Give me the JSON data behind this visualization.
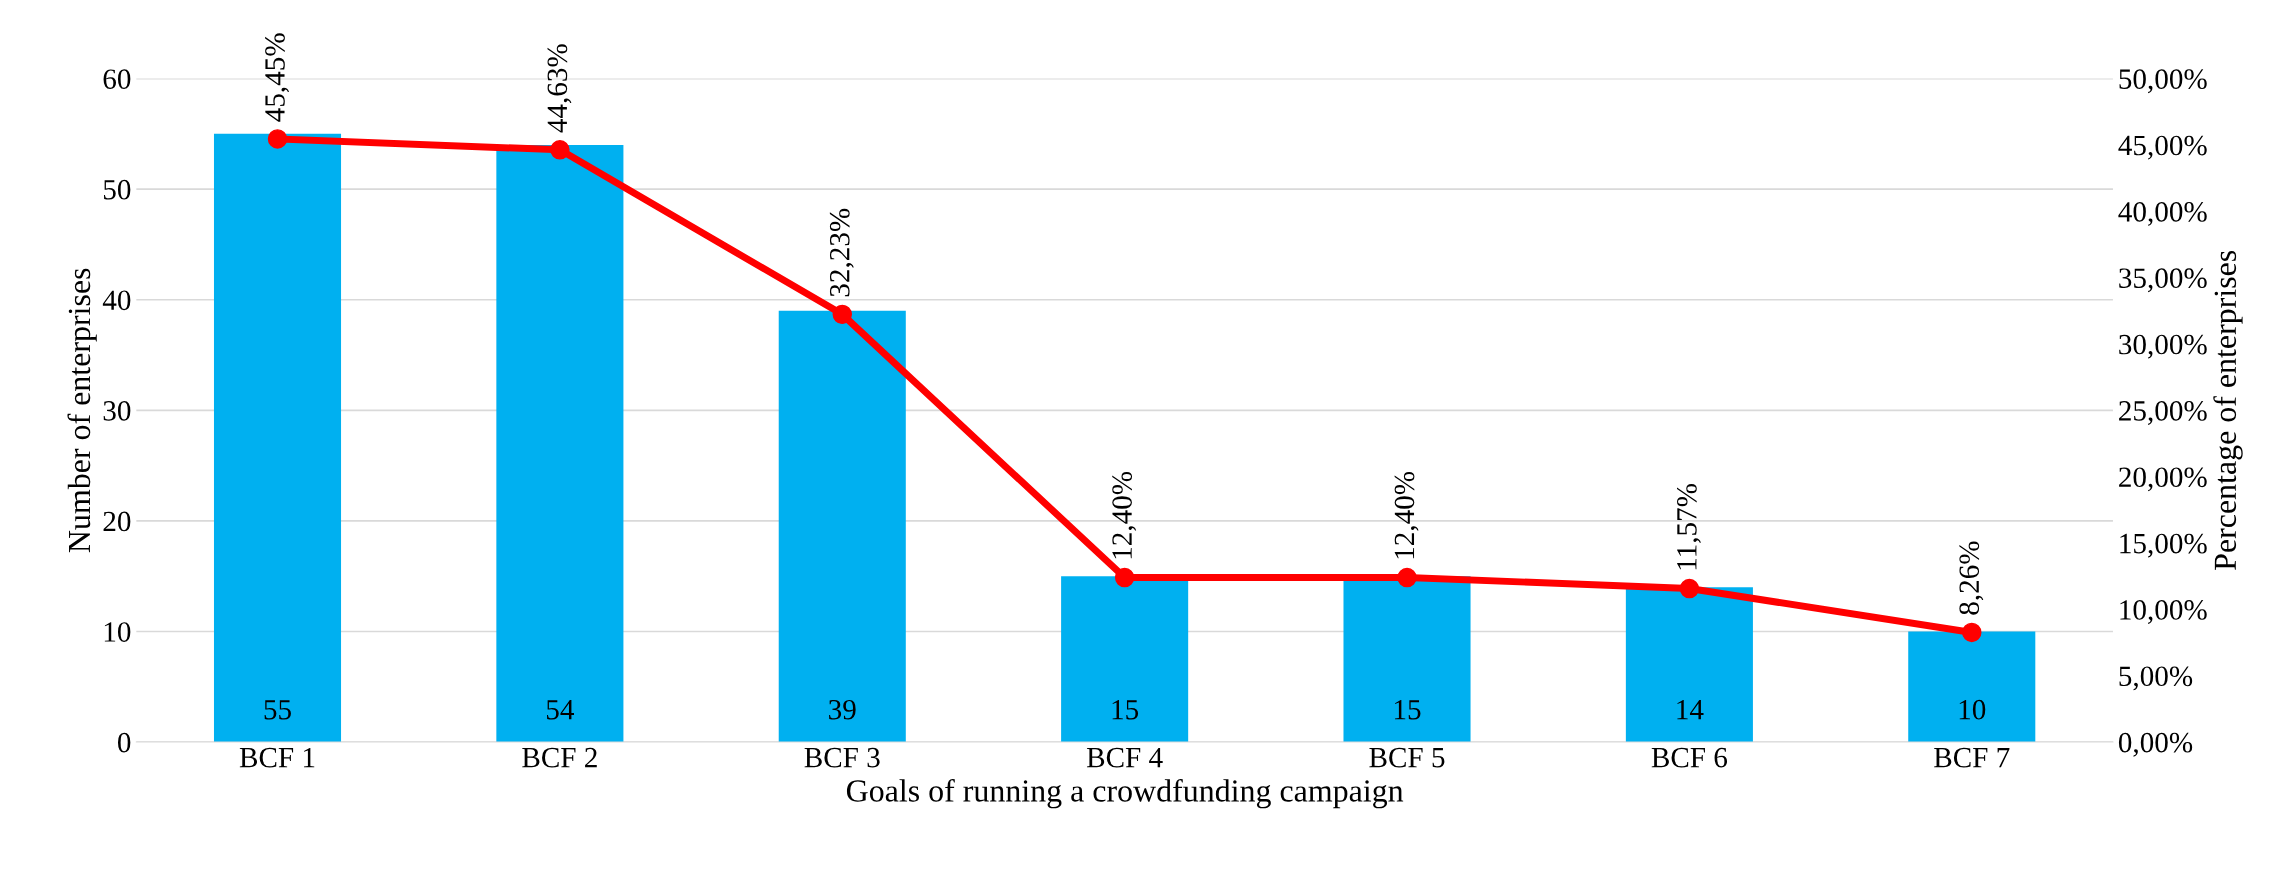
{
  "chart_data": {
    "type": "bar",
    "xlabel": "Goals of running a crowdfunding campaign",
    "ylabel": "Number of enterprises",
    "y2label": "Percentage of enterprises",
    "categories": [
      "BCF 1",
      "BCF 2",
      "BCF 3",
      "BCF 4",
      "BCF 5",
      "BCF 6",
      "BCF 7"
    ],
    "series": [
      {
        "color": "#00b0f0",
        "values": [
          55,
          54,
          39,
          15,
          15,
          14,
          10
        ],
        "value_labels": [
          "55",
          "54",
          "39",
          "15",
          "15",
          "14",
          "10"
        ]
      },
      {
        "type": "line",
        "axis": "y2",
        "color": "#ff0000",
        "marker": "circle",
        "values": [
          45.45,
          44.63,
          32.23,
          12.4,
          12.4,
          11.57,
          8.26
        ],
        "value_labels": [
          "45,45%",
          "44,63%",
          "32,23%",
          "12,40%",
          "12,40%",
          "11,57%",
          "8,26%"
        ]
      }
    ],
    "ylim": [
      0,
      60
    ],
    "yticks": [
      0,
      10,
      20,
      30,
      40,
      50,
      60
    ],
    "y2lim": [
      0,
      50
    ],
    "y2ticks": [
      {
        "value": 0,
        "label": "0,00%"
      },
      {
        "value": 5,
        "label": "5,00%"
      },
      {
        "value": 10,
        "label": "10,00%"
      },
      {
        "value": 15,
        "label": "15,00%"
      },
      {
        "value": 20,
        "label": "20,00%"
      },
      {
        "value": 25,
        "label": "25,00%"
      },
      {
        "value": 30,
        "label": "30,00%"
      },
      {
        "value": 35,
        "label": "35,00%"
      },
      {
        "value": 40,
        "label": "40,00%"
      },
      {
        "value": 45,
        "label": "45,00%"
      },
      {
        "value": 50,
        "label": "50,00%"
      }
    ],
    "grid": "y",
    "legend": false
  }
}
